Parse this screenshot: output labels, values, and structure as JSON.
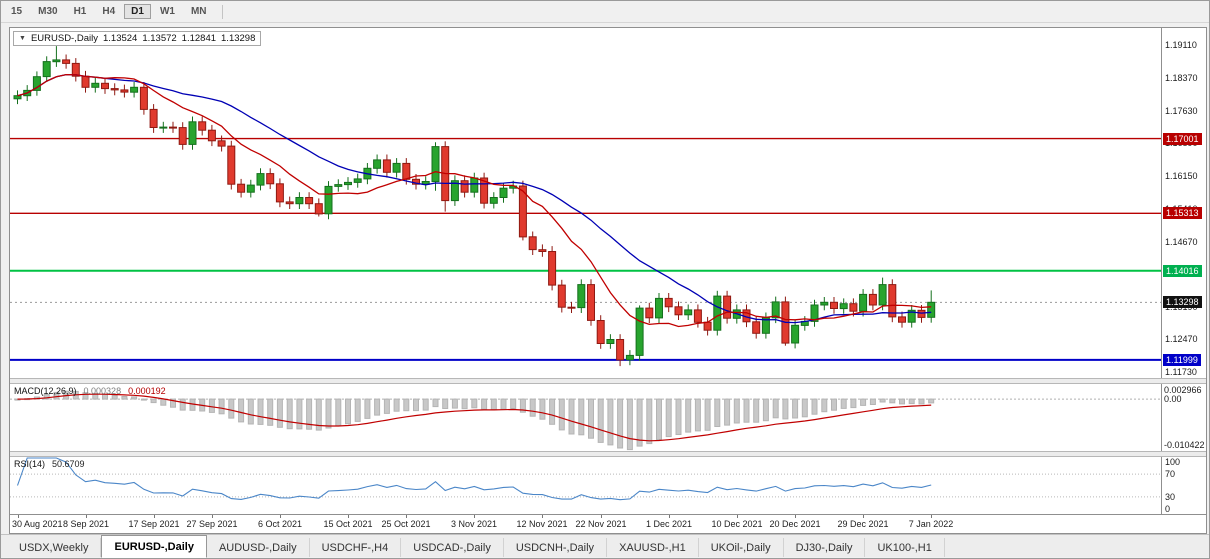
{
  "toolbar": {
    "timeframes": [
      "15",
      "M30",
      "H1",
      "H4",
      "D1",
      "W1",
      "MN"
    ],
    "active": "D1"
  },
  "main_chart": {
    "symbol_title": "EURUSD-,Daily",
    "open": "1.13524",
    "high": "1.13572",
    "low": "1.12841",
    "close": "1.13298"
  },
  "price_scale": {
    "ticks": [
      "1.19110",
      "1.18370",
      "1.17630",
      "1.16890",
      "1.16150",
      "1.15410",
      "1.14670",
      "1.13930",
      "1.13190",
      "1.12470",
      "1.11730"
    ],
    "badges": [
      {
        "text": "1.17001",
        "bg": "#b80000"
      },
      {
        "text": "1.15313",
        "bg": "#b80000"
      },
      {
        "text": "1.14016",
        "bg": "#00b050"
      },
      {
        "text": "1.13298",
        "bg": "#111111"
      },
      {
        "text": "1.11999",
        "bg": "#0000c8"
      }
    ]
  },
  "hlines": [
    {
      "price": 1.17001,
      "color": "#b80000",
      "w": 1.4
    },
    {
      "price": 1.15313,
      "color": "#b80000",
      "w": 1.4
    },
    {
      "price": 1.14016,
      "color": "#00c244",
      "w": 2
    },
    {
      "price": 1.11999,
      "color": "#0000c8",
      "w": 2
    }
  ],
  "macd": {
    "name": "MACD(12,26,9)",
    "value": "0.000328",
    "signal": "0.000192",
    "scale_top": "0.002966",
    "scale_zero": "0.00",
    "scale_bottom": "-0.010422"
  },
  "rsi": {
    "name": "RSI(14)",
    "value": "50.6709",
    "scale": [
      "100",
      "70",
      "30",
      "0"
    ]
  },
  "x_axis": {
    "labels": [
      {
        "t": "30 Aug 2021",
        "i": 0
      },
      {
        "t": "8 Sep 2021",
        "i": 7
      },
      {
        "t": "17 Sep 2021",
        "i": 14
      },
      {
        "t": "27 Sep 2021",
        "i": 20
      },
      {
        "t": "6 Oct 2021",
        "i": 27
      },
      {
        "t": "15 Oct 2021",
        "i": 34
      },
      {
        "t": "25 Oct 2021",
        "i": 40
      },
      {
        "t": "3 Nov 2021",
        "i": 47
      },
      {
        "t": "12 Nov 2021",
        "i": 54
      },
      {
        "t": "22 Nov 2021",
        "i": 60
      },
      {
        "t": "1 Dec 2021",
        "i": 67
      },
      {
        "t": "10 Dec 2021",
        "i": 74
      },
      {
        "t": "20 Dec 2021",
        "i": 80
      },
      {
        "t": "29 Dec 2021",
        "i": 87
      },
      {
        "t": "7 Jan 2022",
        "i": 94
      }
    ]
  },
  "tabs": [
    {
      "label": "USDX,Weekly",
      "active": false
    },
    {
      "label": "EURUSD-,Daily",
      "active": true
    },
    {
      "label": "AUDUSD-,Daily",
      "active": false
    },
    {
      "label": "USDCHF-,H4",
      "active": false
    },
    {
      "label": "USDCAD-,Daily",
      "active": false
    },
    {
      "label": "USDCNH-,Daily",
      "active": false
    },
    {
      "label": "XAUUSD-,H1",
      "active": false
    },
    {
      "label": "UKOil-,Daily",
      "active": false
    },
    {
      "label": "DJ30-,Daily",
      "active": false
    },
    {
      "label": "UK100-,H1",
      "active": false
    }
  ],
  "chart_data": {
    "type": "candlestick",
    "symbol": "EURUSD",
    "timeframe": "Daily",
    "title": "EURUSD-,Daily 1.13524 1.13572 1.12841 1.13298",
    "price_range": {
      "top": 1.195,
      "bottom": 1.1159
    },
    "macd_range": {
      "top": 0.0031,
      "bottom": -0.0107
    },
    "rsi_levels": [
      70,
      30
    ],
    "first_open": 1.179,
    "default_wick": 0.0012,
    "left_pad": 4,
    "bar_step": 9.72,
    "closes": [
      1.1797,
      1.1809,
      1.184,
      1.1874,
      1.1878,
      1.187,
      1.1841,
      1.1816,
      1.1825,
      1.1813,
      1.181,
      1.1805,
      1.1816,
      1.1766,
      1.1725,
      1.1726,
      1.1725,
      1.1687,
      1.1738,
      1.1719,
      1.1695,
      1.1683,
      1.1597,
      1.1579,
      1.1595,
      1.1621,
      1.1598,
      1.1557,
      1.1553,
      1.1567,
      1.1553,
      1.153,
      1.1592,
      1.1596,
      1.1601,
      1.1609,
      1.1633,
      1.1652,
      1.1624,
      1.1644,
      1.1608,
      1.1597,
      1.1603,
      1.1682,
      1.156,
      1.1605,
      1.1579,
      1.1611,
      1.1554,
      1.1567,
      1.1588,
      1.1593,
      1.1478,
      1.1449,
      1.1445,
      1.1369,
      1.1319,
      1.1318,
      1.137,
      1.1289,
      1.1237,
      1.1246,
      1.12,
      1.121,
      1.1317,
      1.1295,
      1.1339,
      1.132,
      1.1302,
      1.1313,
      1.1285,
      1.1267,
      1.1344,
      1.1294,
      1.1313,
      1.1286,
      1.126,
      1.1295,
      1.1331,
      1.1238,
      1.1278,
      1.1287,
      1.1324,
      1.133,
      1.1316,
      1.1327,
      1.131,
      1.1348,
      1.1324,
      1.137,
      1.1297,
      1.1285,
      1.1312,
      1.1296,
      1.133
    ],
    "wick_overrides": {
      "highs": {
        "4": 1.1909,
        "43": 1.1692,
        "64": 1.1323,
        "89": 1.1386,
        "94": 1.1357
      },
      "lows": {
        "31": 1.1524,
        "43": 1.1582,
        "44": 1.1535,
        "52": 1.147,
        "62": 1.1186,
        "79": 1.1232,
        "94": 1.1284
      }
    },
    "indicators": {
      "ma_fast": {
        "period": 10,
        "color": "#c00000"
      },
      "ma_slow": {
        "period": 21,
        "color": "#0000b4"
      },
      "macd": {
        "fast": 12,
        "slow": 26,
        "signal": 9,
        "hist_color": "#c8c8c8",
        "signal_color": "#c00000"
      },
      "rsi": {
        "period": 14,
        "color": "#4a86c8"
      }
    },
    "colors": {
      "up": "#28a42e",
      "up_border": "#15701d",
      "down": "#e03a2e",
      "down_border": "#8f1912"
    }
  }
}
